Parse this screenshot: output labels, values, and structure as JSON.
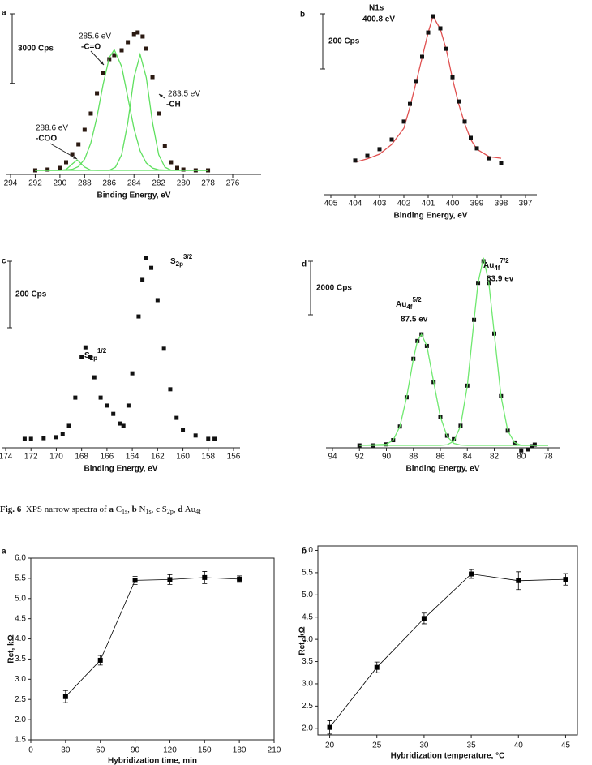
{
  "chart_data": [
    {
      "type": "scatter",
      "panel": "a",
      "xlim": [
        294,
        276
      ],
      "xticks": [
        294,
        292,
        290,
        288,
        286,
        284,
        282,
        280,
        278,
        276
      ],
      "ylim": [
        0,
        7000
      ],
      "xlabel": "Binding Energy, eV",
      "scale_bar": {
        "value": 3000,
        "label": "3000 Cps"
      },
      "series": [
        {
          "style": "marker",
          "color": "#2b1a12",
          "x": [
            292,
            291,
            290,
            289.5,
            289,
            288.5,
            288,
            287.5,
            287,
            286.5,
            286,
            285.6,
            285,
            284.5,
            284,
            283.7,
            283.3,
            283,
            282.5,
            282,
            281.5,
            281,
            280.5,
            280,
            279,
            278
          ],
          "values": [
            175,
            210,
            280,
            525,
            875,
            1295,
            1925,
            2625,
            3500,
            4375,
            4970,
            5145,
            5355,
            5705,
            6055,
            6125,
            5950,
            5425,
            4200,
            2625,
            1225,
            525,
            280,
            210,
            175,
            175
          ]
        },
        {
          "style": "line",
          "color": "#5fe05f",
          "x": [
            292,
            290,
            289,
            288.5,
            288,
            287.5,
            287,
            286.5,
            286,
            285.6,
            285,
            284.5,
            284,
            283.5,
            283,
            282.5,
            282,
            281,
            278
          ],
          "values": [
            175,
            175,
            219,
            335,
            655,
            1345,
            2485,
            3895,
            5045,
            5375,
            4655,
            3325,
            1975,
            1015,
            495,
            275,
            200,
            175,
            175
          ]
        },
        {
          "style": "line",
          "color": "#5fe05f",
          "x": [
            292,
            286,
            285.5,
            285,
            284.5,
            284,
            283.5,
            283,
            282.5,
            282,
            281.5,
            281,
            280,
            278
          ],
          "values": [
            175,
            175,
            315,
            850,
            2230,
            4175,
            5175,
            4175,
            2230,
            850,
            315,
            185,
            175,
            175
          ]
        },
        {
          "style": "line",
          "color": "#5fe05f",
          "x": [
            292,
            290,
            289.5,
            289,
            288.6,
            288,
            287.5,
            287,
            278
          ],
          "values": [
            175,
            175,
            211,
            450,
            625,
            321,
            185,
            175,
            175
          ]
        }
      ],
      "annotations": [
        {
          "text": "288.6 eV"
        },
        {
          "text": "-COO"
        },
        {
          "text": "285.6 eV"
        },
        {
          "text": "-C=O"
        },
        {
          "text": "283.5 eV"
        },
        {
          "text": "-CH"
        }
      ]
    },
    {
      "type": "scatter",
      "panel": "b",
      "xlim": [
        405,
        397
      ],
      "xticks": [
        405,
        404,
        403,
        402,
        401,
        400,
        399,
        398,
        397
      ],
      "ylim": [
        0,
        700
      ],
      "xlabel": "Binding Energy, eV",
      "scale_bar": {
        "value": 200,
        "label": "200 Cps"
      },
      "series": [
        {
          "style": "line",
          "color": "#e05050",
          "x": [
            404,
            403.5,
            403,
            402.5,
            402,
            401.75,
            401.5,
            401.25,
            401,
            400.8,
            400.5,
            400.25,
            400,
            399.75,
            399.5,
            399.25,
            399,
            398.5,
            398
          ],
          "values": [
            118,
            130,
            147,
            182,
            241,
            318,
            406,
            497,
            588,
            647,
            600,
            524,
            420,
            330,
            258,
            200,
            165,
            138,
            132
          ]
        },
        {
          "style": "marker",
          "color": "#111111",
          "x": [
            404,
            403.5,
            403,
            402.5,
            402,
            401.75,
            401.5,
            401.25,
            401,
            400.8,
            400.5,
            400.25,
            400,
            399.75,
            399.5,
            399.25,
            399,
            398.5,
            398
          ],
          "values": [
            124,
            141,
            165,
            200,
            265,
            329,
            412,
            500,
            588,
            647,
            603,
            529,
            426,
            338,
            265,
            206,
            168,
            132,
            115
          ]
        }
      ],
      "annotations": [
        {
          "text": "N1s"
        },
        {
          "text": "400.8 eV"
        }
      ]
    },
    {
      "type": "scatter",
      "panel": "c",
      "xlim": [
        174,
        156
      ],
      "xticks": [
        174,
        172,
        170,
        168,
        166,
        164,
        162,
        160,
        158,
        156
      ],
      "ylim": [
        0,
        1300
      ],
      "xlabel": "Binding Energy, eV",
      "scale_bar": {
        "value": 200,
        "label": "200 Cps"
      },
      "series": [
        {
          "style": "marker",
          "color": "#111111",
          "x": [
            172.5,
            172,
            171,
            170,
            169.5,
            169,
            168.5,
            168,
            167.7,
            167.3,
            167,
            166.5,
            166,
            165.5,
            165,
            164.7,
            164.3,
            164,
            163.5,
            163.2,
            162.9,
            162.5,
            162,
            161.5,
            161,
            160.5,
            160,
            159,
            158,
            157.5
          ],
          "values": [
            27,
            27,
            29,
            32,
            41,
            66,
            151,
            273,
            302,
            273,
            212,
            151,
            127,
            102,
            73,
            66,
            127,
            224,
            395,
            505,
            571,
            541,
            444,
            298,
            176,
            90,
            54,
            37,
            27,
            27
          ]
        }
      ],
      "peak_labels": [
        {
          "base": "S",
          "sub": "2p",
          "sup": "3/2"
        },
        {
          "base": "S",
          "sub": "2p",
          "sup": "1/2"
        }
      ]
    },
    {
      "type": "scatter",
      "panel": "d",
      "xlim": [
        94,
        78
      ],
      "xticks": [
        94,
        92,
        90,
        88,
        86,
        84,
        82,
        80,
        78
      ],
      "ylim": [
        0,
        8000
      ],
      "xlabel": "Binding Energy, eV",
      "scale_bar": {
        "value": 2000,
        "label": "2000 Cps"
      },
      "series": [
        {
          "style": "marker",
          "color": "#111111",
          "x": [
            92,
            91,
            90,
            89.5,
            89,
            88.5,
            88,
            87.7,
            87.4,
            87,
            86.5,
            86,
            85.5,
            85,
            84.5,
            84,
            83.5,
            83.2,
            82.8,
            82.4,
            82,
            81.5,
            81,
            80.5,
            80,
            79.5,
            79.2,
            79
          ],
          "values": [
            90,
            90,
            129,
            287,
            796,
            1887,
            3326,
            3990,
            4240,
            3805,
            2460,
            1160,
            453,
            324,
            822,
            2324,
            4780,
            6160,
            6970,
            6160,
            4265,
            1930,
            640,
            200,
            -100,
            -60,
            60,
            120
          ]
        },
        {
          "style": "line",
          "color": "#6fe86f",
          "x": [
            92,
            90,
            89.5,
            89,
            88.5,
            88,
            87.7,
            87.4,
            87,
            86.5,
            86,
            85.5,
            85,
            84.5,
            84,
            82,
            78
          ],
          "values": [
            90,
            129,
            287,
            796,
            1887,
            3326,
            3990,
            4240,
            3805,
            2460,
            1160,
            430,
            167,
            102,
            90,
            90,
            90
          ]
        },
        {
          "style": "line",
          "color": "#6fe86f",
          "x": [
            92,
            86,
            85.5,
            85,
            84.5,
            84,
            83.5,
            83.2,
            82.8,
            82.4,
            82,
            81.5,
            81,
            80.5,
            80,
            78
          ],
          "values": [
            90,
            90,
            113,
            247,
            810,
            2324,
            4780,
            6160,
            7100,
            6160,
            4265,
            1930,
            640,
            200,
            92,
            90
          ]
        }
      ],
      "peak_labels": [
        {
          "base": "Au",
          "sub": "4f",
          "sup": "5/2"
        },
        {
          "base": "Au",
          "sub": "4f",
          "sup": "7/2"
        }
      ],
      "annotations": [
        {
          "text": "87.5 ev"
        },
        {
          "text": "83.9 ev"
        }
      ]
    },
    {
      "type": "line",
      "panel": "a",
      "color": "#000000",
      "xlim": [
        0,
        210
      ],
      "xticks": [
        0,
        30,
        60,
        90,
        120,
        150,
        180,
        210
      ],
      "ylim": [
        1.5,
        6
      ],
      "yticks": [
        1.5,
        {
          "value": 2,
          "label": "2.0"
        },
        2.5,
        {
          "value": 3,
          "label": "3.0"
        },
        3.5,
        {
          "value": 4,
          "label": "4.0"
        },
        4.5,
        {
          "value": 5,
          "label": "5.0"
        },
        5.5,
        {
          "value": 6,
          "label": "6.0"
        }
      ],
      "xlabel": "Hybridization time, min",
      "ylabel": "Rct, kΩ",
      "x": [
        30,
        60,
        90,
        120,
        150,
        180
      ],
      "values": [
        2.57,
        3.47,
        5.45,
        5.47,
        5.52,
        5.48
      ],
      "errors": [
        0.15,
        0.12,
        0.1,
        0.12,
        0.15,
        0.08
      ]
    },
    {
      "type": "line",
      "panel": "b",
      "color": "#000000",
      "xlim": [
        18.75,
        46.25
      ],
      "xticks": [
        20,
        25,
        30,
        35,
        40,
        45
      ],
      "ylim": [
        1.85,
        6.1
      ],
      "yticks": [
        {
          "value": 2,
          "label": "2.0"
        },
        2.5,
        {
          "value": 3,
          "label": "3.0"
        },
        3.5,
        {
          "value": 4,
          "label": "4.0"
        },
        4.5,
        {
          "value": 5,
          "label": "5.0"
        },
        5.5,
        {
          "value": 6,
          "label": "6.0"
        }
      ],
      "xlabel": "Hybridization temperature, °C",
      "ylabel": "Rct, kΩ",
      "x": [
        20,
        25,
        30,
        35,
        40,
        45
      ],
      "values": [
        2.02,
        3.37,
        4.47,
        5.47,
        5.32,
        5.35
      ],
      "errors": [
        0.15,
        0.12,
        0.12,
        0.1,
        0.2,
        0.13
      ]
    }
  ],
  "caption": [
    {
      "text": "Fig. 6",
      "style": "bold"
    },
    {
      "text": "  XPS narrow spectra of ",
      "style": "normal"
    },
    {
      "text": "a",
      "style": "bold"
    },
    {
      "text": " C",
      "style": "normal"
    },
    {
      "text": "1s",
      "style": "sub"
    },
    {
      "text": ", ",
      "style": "normal"
    },
    {
      "text": "b",
      "style": "bold"
    },
    {
      "text": " N",
      "style": "normal"
    },
    {
      "text": "1s",
      "style": "sub"
    },
    {
      "text": ", ",
      "style": "normal"
    },
    {
      "text": "c",
      "style": "bold"
    },
    {
      "text": " S",
      "style": "normal"
    },
    {
      "text": "2p",
      "style": "sub"
    },
    {
      "text": ", ",
      "style": "normal"
    },
    {
      "text": "d",
      "style": "bold"
    },
    {
      "text": " Au",
      "style": "normal"
    },
    {
      "text": "4f",
      "style": "sub"
    }
  ]
}
